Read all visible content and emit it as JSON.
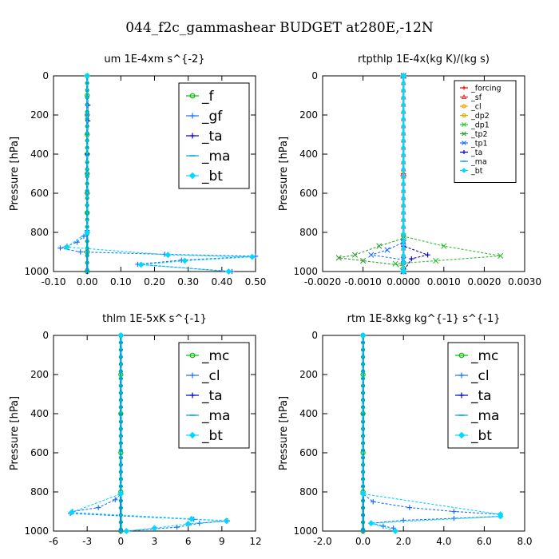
{
  "suptitle": "044_f2c_gammashear  BUDGET at280E,-12N",
  "chart_data": [
    {
      "type": "line",
      "title": "um  1E-4xm s^{-2}",
      "ylabel": "Pressure [hPa]",
      "xlim": [
        -0.1,
        0.5
      ],
      "ylim": [
        1000,
        0
      ],
      "xticks": [
        -0.1,
        0.0,
        0.1,
        0.2,
        0.3,
        0.4,
        0.5
      ],
      "xtick_labels": [
        "-0.10",
        "0.00",
        "0.10",
        "0.20",
        "0.30",
        "0.40",
        "0.50"
      ],
      "yticks": [
        0,
        200,
        400,
        600,
        800,
        1000
      ],
      "ytick_labels": [
        "0",
        "200",
        "400",
        "600",
        "800",
        "1000"
      ],
      "legend": {
        "position": "top-right",
        "size": "large"
      },
      "series": [
        {
          "name": "_f",
          "color": "#00c000",
          "marker": "circle",
          "points": [
            [
              0,
              0
            ],
            [
              0,
              100
            ],
            [
              0,
              200
            ],
            [
              0,
              300
            ],
            [
              0,
              400
            ],
            [
              0,
              500
            ],
            [
              0,
              600
            ],
            [
              0,
              700
            ],
            [
              0,
              800
            ],
            [
              0,
              900
            ],
            [
              0,
              1000
            ]
          ]
        },
        {
          "name": "_gf",
          "color": "#1e6fff",
          "marker": "plus",
          "points": [
            [
              0,
              0
            ],
            [
              0,
              200
            ],
            [
              0,
              400
            ],
            [
              0,
              600
            ],
            [
              0,
              790
            ],
            [
              -0.01,
              820
            ],
            [
              -0.03,
              850
            ],
            [
              -0.06,
              870
            ],
            [
              -0.08,
              880
            ],
            [
              -0.02,
              900
            ],
            [
              0.23,
              912
            ],
            [
              0.5,
              922
            ],
            [
              0.28,
              942
            ],
            [
              0.15,
              963
            ],
            [
              0.43,
              1000
            ]
          ]
        },
        {
          "name": "_ta",
          "color": "#0000cc",
          "marker": "plus",
          "points": [
            [
              0,
              0
            ],
            [
              0.002,
              150
            ],
            [
              0.002,
              230
            ],
            [
              0,
              400
            ],
            [
              0,
              800
            ],
            [
              0,
              1000
            ]
          ]
        },
        {
          "name": "_ma",
          "color": "#00a0e0",
          "marker": "dash",
          "points": [
            [
              0,
              0
            ],
            [
              0,
              500
            ],
            [
              0,
              1000
            ]
          ]
        },
        {
          "name": "_bt",
          "color": "#00d8ff",
          "marker": "diamond",
          "points": [
            [
              0,
              0
            ],
            [
              0,
              800
            ],
            [
              -0.06,
              875
            ],
            [
              0.24,
              915
            ],
            [
              0.49,
              925
            ],
            [
              0.29,
              945
            ],
            [
              0.16,
              965
            ],
            [
              0.42,
              1000
            ]
          ]
        }
      ]
    },
    {
      "type": "line",
      "title": "rtpthlp  1E-4x(kg K)/(kg s)",
      "ylabel": "Pressure [hPa]",
      "xlim": [
        -0.002,
        0.003
      ],
      "ylim": [
        1000,
        0
      ],
      "xticks": [
        -0.002,
        -0.001,
        0.0,
        0.001,
        0.002,
        0.003
      ],
      "xtick_labels": [
        "-0.0020",
        "-0.0010",
        "0.0000",
        "0.0010",
        "0.0020",
        "0.0030"
      ],
      "yticks": [
        0,
        200,
        400,
        600,
        800,
        1000
      ],
      "ytick_labels": [
        "0",
        "200",
        "400",
        "600",
        "800",
        "1000"
      ],
      "legend": {
        "position": "top-right",
        "size": "small"
      },
      "series": [
        {
          "name": "_forcing",
          "color": "#ff0000",
          "marker": "plus",
          "points": [
            [
              0,
              0
            ],
            [
              0,
              500
            ],
            [
              0,
              1000
            ]
          ]
        },
        {
          "name": "_sf",
          "color": "#ff3030",
          "marker": "triangle",
          "points": [
            [
              0,
              0
            ],
            [
              0,
              500
            ],
            [
              0,
              1000
            ]
          ]
        },
        {
          "name": "_cl",
          "color": "#ffa000",
          "marker": "circle",
          "points": [
            [
              0,
              0
            ],
            [
              0,
              1000
            ]
          ]
        },
        {
          "name": "_dp2",
          "color": "#d8b000",
          "marker": "circle",
          "points": [
            [
              0,
              0
            ],
            [
              0,
              1000
            ]
          ]
        },
        {
          "name": "_dp1",
          "color": "#30c030",
          "marker": "x",
          "points": [
            [
              0,
              0
            ],
            [
              0,
              820
            ],
            [
              0.001,
              870
            ],
            [
              0.0024,
              920
            ],
            [
              0.0008,
              945
            ],
            [
              -0.0002,
              960
            ],
            [
              0,
              1000
            ]
          ]
        },
        {
          "name": "_tp2",
          "color": "#30a030",
          "marker": "x",
          "points": [
            [
              0,
              0
            ],
            [
              0,
              830
            ],
            [
              -0.0006,
              870
            ],
            [
              -0.0012,
              915
            ],
            [
              -0.0016,
              930
            ],
            [
              -0.001,
              945
            ],
            [
              0,
              970
            ],
            [
              0,
              1000
            ]
          ]
        },
        {
          "name": "_tp1",
          "color": "#1e6fff",
          "marker": "x",
          "points": [
            [
              0,
              0
            ],
            [
              0,
              850
            ],
            [
              -0.0004,
              890
            ],
            [
              -0.0008,
              915
            ],
            [
              0,
              940
            ],
            [
              0,
              1000
            ]
          ]
        },
        {
          "name": "_ta",
          "color": "#0000cc",
          "marker": "plus",
          "points": [
            [
              0,
              0
            ],
            [
              0,
              870
            ],
            [
              0.0006,
              915
            ],
            [
              0.0002,
              935
            ],
            [
              0,
              1000
            ]
          ]
        },
        {
          "name": "_ma",
          "color": "#00a0e0",
          "marker": "dash",
          "points": [
            [
              0,
              0
            ],
            [
              0,
              1000
            ]
          ]
        },
        {
          "name": "_bt",
          "color": "#00d8ff",
          "marker": "diamond",
          "points": [
            [
              0,
              0
            ],
            [
              0,
              1000
            ]
          ]
        }
      ]
    },
    {
      "type": "line",
      "title": "thlm  1E-5xK s^{-1}",
      "ylabel": "Pressure [hPa]",
      "xlim": [
        -6,
        12
      ],
      "ylim": [
        1000,
        0
      ],
      "xticks": [
        -6,
        -3,
        0,
        3,
        6,
        9,
        12
      ],
      "xtick_labels": [
        "-6",
        "-3",
        "0",
        "3",
        "6",
        "9",
        "12"
      ],
      "yticks": [
        0,
        200,
        400,
        600,
        800,
        1000
      ],
      "ytick_labels": [
        "0",
        "200",
        "400",
        "600",
        "800",
        "1000"
      ],
      "legend": {
        "position": "top-right",
        "size": "large"
      },
      "series": [
        {
          "name": "_mc",
          "color": "#00c000",
          "marker": "circle",
          "points": [
            [
              0,
              0
            ],
            [
              0,
              200
            ],
            [
              0,
              400
            ],
            [
              0,
              600
            ],
            [
              0,
              800
            ],
            [
              0,
              1000
            ]
          ]
        },
        {
          "name": "_cl",
          "color": "#1e6fff",
          "marker": "plus",
          "points": [
            [
              0,
              0
            ],
            [
              0,
              810
            ],
            [
              -0.5,
              840
            ],
            [
              -2.0,
              880
            ],
            [
              -4.3,
              900
            ],
            [
              -4.5,
              910
            ],
            [
              6.5,
              940
            ],
            [
              9.5,
              948
            ],
            [
              7.0,
              960
            ],
            [
              5.0,
              980
            ],
            [
              0.5,
              1000
            ]
          ]
        },
        {
          "name": "_ta",
          "color": "#0000cc",
          "marker": "plus",
          "points": [
            [
              0,
              0
            ],
            [
              0,
              1000
            ]
          ]
        },
        {
          "name": "_ma",
          "color": "#00a0e0",
          "marker": "dash",
          "points": [
            [
              0,
              0
            ],
            [
              0,
              1000
            ]
          ]
        },
        {
          "name": "_bt",
          "color": "#00d8ff",
          "marker": "diamond",
          "points": [
            [
              0,
              0
            ],
            [
              0,
              810
            ],
            [
              -4.4,
              905
            ],
            [
              6.3,
              938
            ],
            [
              9.4,
              948
            ],
            [
              6.0,
              963
            ],
            [
              3.0,
              985
            ],
            [
              0.5,
              1000
            ]
          ]
        }
      ]
    },
    {
      "type": "line",
      "title": "rtm  1E-8xkg kg^{-1} s^{-1}",
      "ylabel": "Pressure [hPa]",
      "xlim": [
        -2.0,
        8.0
      ],
      "ylim": [
        1000,
        0
      ],
      "xticks": [
        -2.0,
        0.0,
        2.0,
        4.0,
        6.0,
        8.0
      ],
      "xtick_labels": [
        "-2.0",
        "0.0",
        "2.0",
        "4.0",
        "6.0",
        "8.0"
      ],
      "yticks": [
        0,
        200,
        400,
        600,
        800,
        1000
      ],
      "ytick_labels": [
        "0",
        "200",
        "400",
        "600",
        "800",
        "1000"
      ],
      "legend": {
        "position": "top-right",
        "size": "large"
      },
      "series": [
        {
          "name": "_mc",
          "color": "#00c000",
          "marker": "circle",
          "points": [
            [
              0,
              0
            ],
            [
              0,
              200
            ],
            [
              0,
              400
            ],
            [
              0,
              600
            ],
            [
              0,
              800
            ],
            [
              0,
              1000
            ]
          ]
        },
        {
          "name": "_cl",
          "color": "#1e6fff",
          "marker": "plus",
          "points": [
            [
              0,
              0
            ],
            [
              0,
              810
            ],
            [
              0.5,
              850
            ],
            [
              2.3,
              880
            ],
            [
              4.5,
              900
            ],
            [
              6.8,
              915
            ],
            [
              6.8,
              925
            ],
            [
              4.5,
              935
            ],
            [
              2.0,
              945
            ],
            [
              0.4,
              960
            ],
            [
              1.0,
              975
            ],
            [
              1.5,
              985
            ],
            [
              1.6,
              1000
            ]
          ]
        },
        {
          "name": "_ta",
          "color": "#0000cc",
          "marker": "plus",
          "points": [
            [
              0,
              0
            ],
            [
              0,
              1000
            ]
          ]
        },
        {
          "name": "_ma",
          "color": "#00a0e0",
          "marker": "dash",
          "points": [
            [
              0,
              0
            ],
            [
              0,
              1000
            ]
          ]
        },
        {
          "name": "_bt",
          "color": "#00d8ff",
          "marker": "diamond",
          "points": [
            [
              0,
              0
            ],
            [
              0,
              810
            ],
            [
              6.8,
              915
            ],
            [
              6.8,
              925
            ],
            [
              0.4,
              960
            ],
            [
              1.6,
              1000
            ]
          ]
        }
      ]
    }
  ]
}
